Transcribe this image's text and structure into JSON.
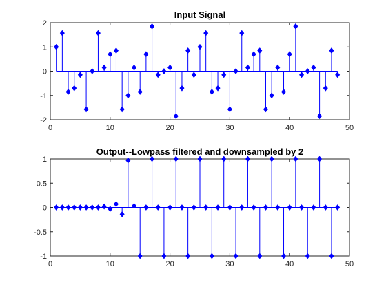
{
  "chart_data": [
    {
      "type": "stem",
      "title": "Input Signal",
      "xlabel": "",
      "ylabel": "",
      "xlim": [
        0,
        50
      ],
      "ylim": [
        -2,
        2
      ],
      "xticks": [
        0,
        10,
        20,
        30,
        40,
        50
      ],
      "yticks": [
        -2,
        -1,
        0,
        1,
        2
      ],
      "grid": false,
      "color": "#0000ff",
      "x": [
        1,
        2,
        3,
        4,
        5,
        6,
        7,
        8,
        9,
        10,
        11,
        12,
        13,
        14,
        15,
        16,
        17,
        18,
        19,
        20,
        21,
        22,
        23,
        24,
        25,
        26,
        27,
        28,
        29,
        30,
        31,
        32,
        33,
        34,
        35,
        36,
        37,
        38,
        39,
        40,
        41,
        42,
        43,
        44,
        45,
        46,
        47,
        48
      ],
      "y": [
        1.0,
        1.57,
        -0.85,
        -0.7,
        -0.15,
        -1.57,
        0,
        1.57,
        0.15,
        0.7,
        0.85,
        -1.57,
        -1.0,
        0.15,
        -0.85,
        0.7,
        1.85,
        -0.15,
        0,
        0.15,
        -1.85,
        -0.7,
        0.85,
        -0.15,
        1.0,
        1.57,
        -0.85,
        -0.7,
        -0.15,
        -1.57,
        0,
        1.57,
        0.15,
        0.7,
        0.85,
        -1.57,
        -1.0,
        0.15,
        -0.85,
        0.7,
        1.85,
        -0.15,
        0,
        0.15,
        -1.85,
        -0.7,
        0.85,
        -0.15
      ]
    },
    {
      "type": "stem",
      "title": "Output--Lowpass filtered and downsampled by 2",
      "xlabel": "",
      "ylabel": "",
      "xlim": [
        0,
        50
      ],
      "ylim": [
        -1,
        1
      ],
      "xticks": [
        0,
        10,
        20,
        30,
        40,
        50
      ],
      "yticks": [
        -1,
        -0.5,
        0,
        0.5,
        1
      ],
      "grid": false,
      "color": "#0000ff",
      "x": [
        1,
        2,
        3,
        4,
        5,
        6,
        7,
        8,
        9,
        10,
        11,
        12,
        13,
        14,
        15,
        16,
        17,
        18,
        19,
        20,
        21,
        22,
        23,
        24,
        25,
        26,
        27,
        28,
        29,
        30,
        31,
        32,
        33,
        34,
        35,
        36,
        37,
        38,
        39,
        40,
        41,
        42,
        43,
        44,
        45,
        46,
        47,
        48
      ],
      "y": [
        0,
        0,
        0,
        0,
        0,
        0,
        0,
        0,
        0.02,
        -0.03,
        0.07,
        -0.14,
        0.97,
        0.03,
        -1,
        0,
        1,
        0,
        -1,
        0,
        1,
        0,
        -1,
        0,
        1,
        0,
        -1,
        0,
        1,
        0,
        -1,
        0,
        1,
        0,
        -1,
        0,
        1,
        0,
        -1,
        0,
        1,
        0,
        -1,
        0,
        1,
        0,
        -1,
        0
      ]
    }
  ]
}
